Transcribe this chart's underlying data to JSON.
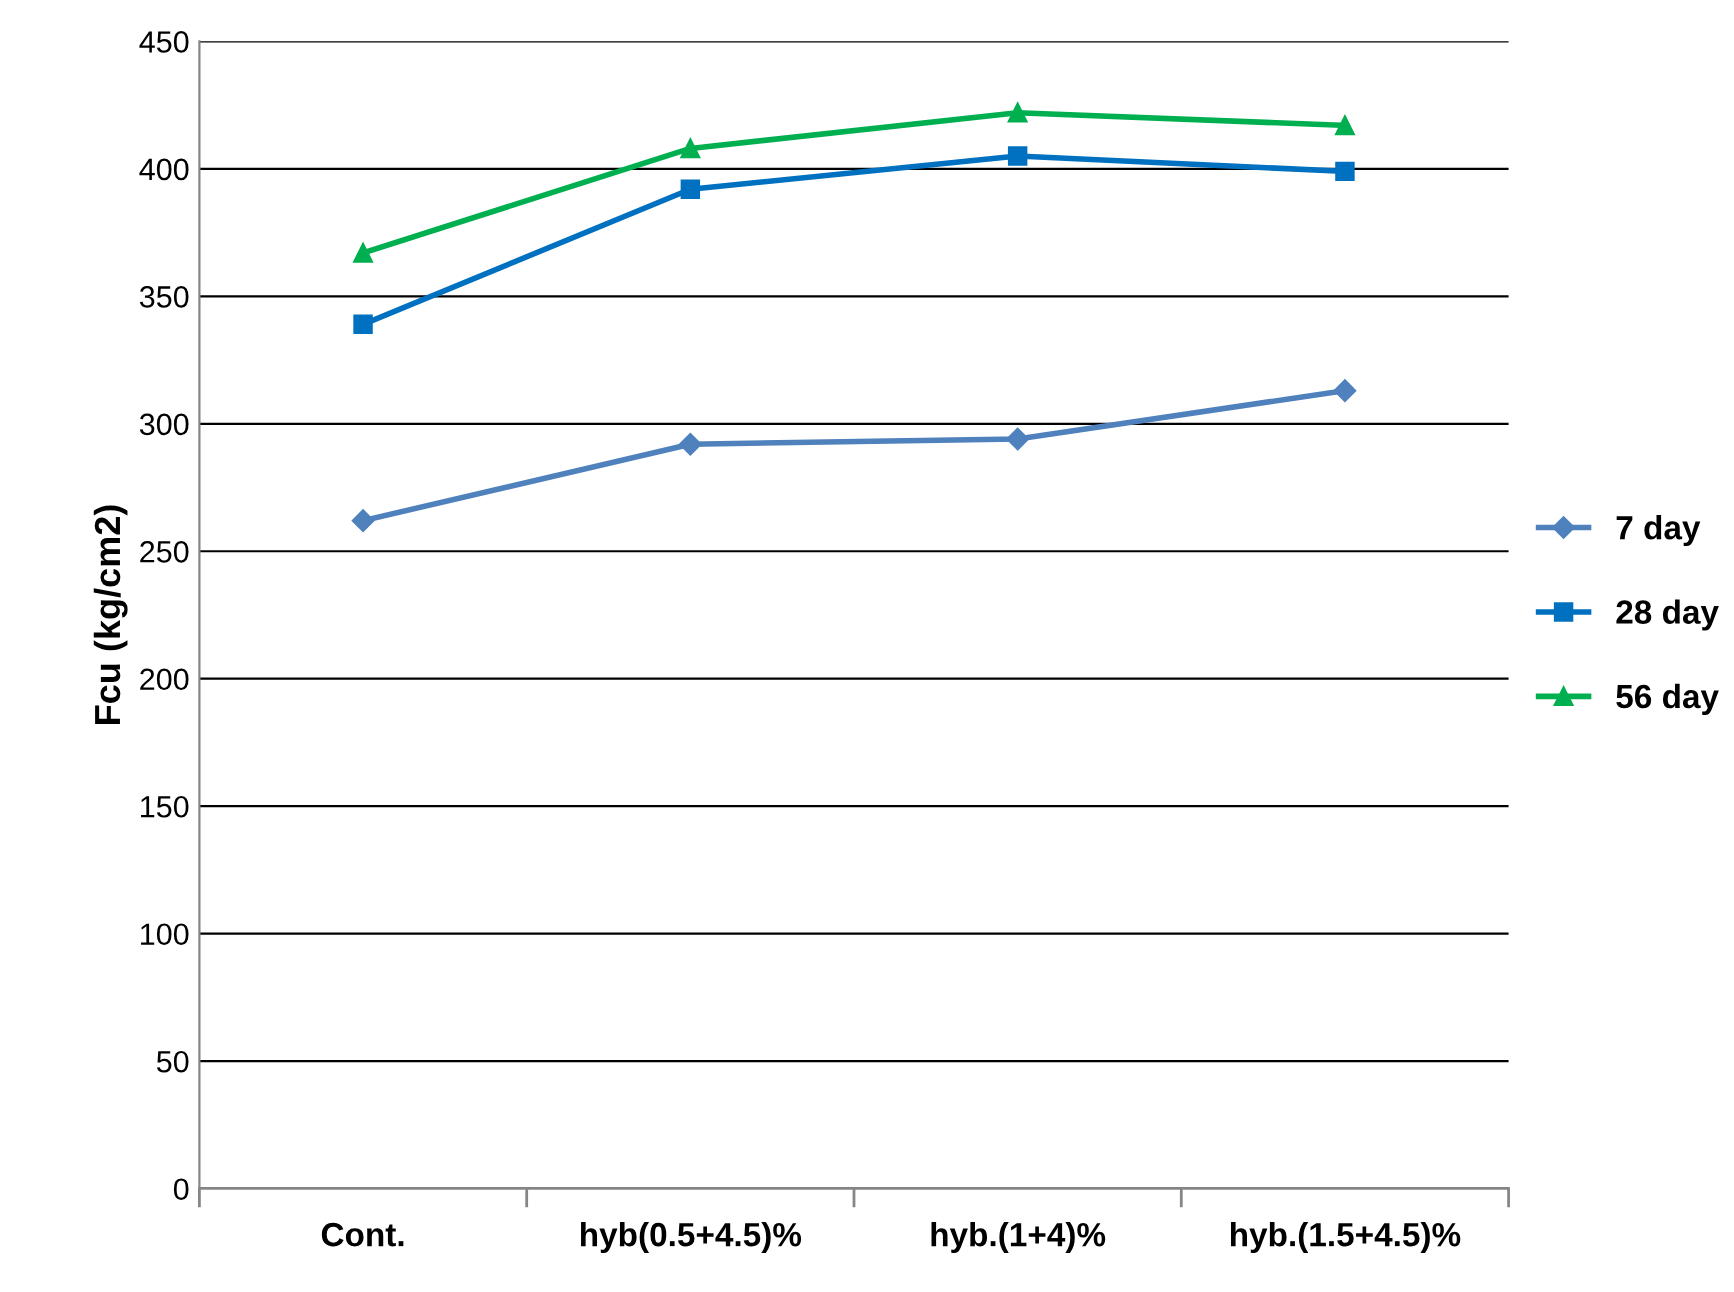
{
  "chart_data": {
    "type": "line",
    "ylabel": "Fcu (kg/cm2)",
    "categories": [
      "Cont.",
      "hyb(0.5+4.5)%",
      "hyb.(1+4)%",
      "hyb.(1.5+4.5)%"
    ],
    "series": [
      {
        "name": "7 day",
        "color": "#4f81bd",
        "marker": "diamond",
        "values": [
          262,
          292,
          294,
          313
        ]
      },
      {
        "name": "28 day",
        "color": "#0070c0",
        "marker": "square",
        "values": [
          339,
          392,
          405,
          399
        ]
      },
      {
        "name": "56 day",
        "color": "#00b050",
        "marker": "triangle",
        "values": [
          367,
          408,
          422,
          417
        ]
      }
    ],
    "ylim": [
      0,
      450
    ],
    "yticks": [
      0,
      50,
      100,
      150,
      200,
      250,
      300,
      350,
      400,
      450
    ],
    "grid": "y",
    "legend": "right",
    "line_style": "solid"
  }
}
